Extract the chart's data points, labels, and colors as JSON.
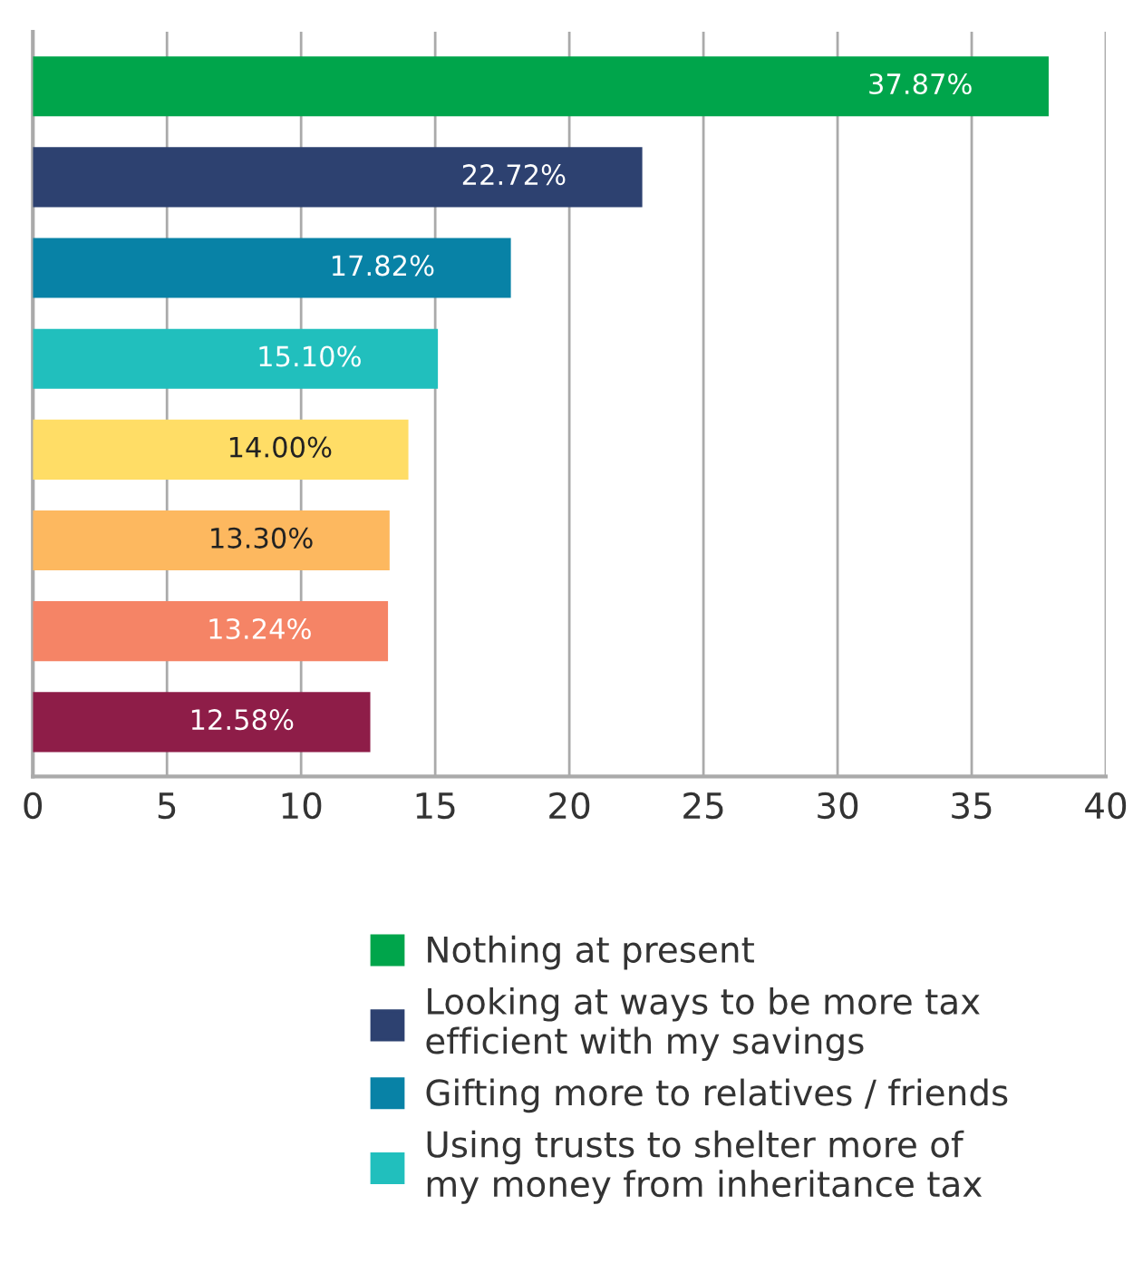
{
  "chart_data": {
    "type": "bar",
    "orientation": "horizontal",
    "categories": [
      null,
      null,
      null,
      null,
      null,
      null,
      null,
      null
    ],
    "series": [
      {
        "name": "Nothing at present",
        "color": "#00a54b",
        "values": [
          37.87,
          null,
          null,
          null,
          null,
          null,
          null,
          null
        ],
        "value_labels": [
          "37.87%",
          null,
          null,
          null,
          null,
          null,
          null,
          null
        ]
      },
      {
        "name": "Looking at ways to be more tax\nefficient with my savings",
        "color": "#2d4170",
        "values": [
          null,
          22.72,
          null,
          null,
          null,
          null,
          null,
          null
        ],
        "value_labels": [
          null,
          "22.72%",
          null,
          null,
          null,
          null,
          null,
          null
        ]
      },
      {
        "name": "Gifting more to relatives / friends",
        "color": "#0882a6",
        "values": [
          null,
          null,
          17.82,
          null,
          null,
          null,
          null,
          null
        ],
        "value_labels": [
          null,
          null,
          "17.82%",
          null,
          null,
          null,
          null,
          null
        ]
      },
      {
        "name": "Using trusts to shelter more of\nmy money from inheritance tax",
        "color": "#21bfbd",
        "values": [
          null,
          null,
          null,
          15.1,
          null,
          null,
          null,
          null
        ],
        "value_labels": [
          null,
          null,
          null,
          "15.10%",
          null,
          null,
          null,
          null
        ]
      },
      {
        "color": "#ffdd66",
        "values": [
          null,
          null,
          null,
          null,
          14.0,
          null,
          null,
          null
        ],
        "value_labels": [
          null,
          null,
          null,
          null,
          "14.00%",
          null,
          null,
          null
        ]
      },
      {
        "color": "#fdb85f",
        "values": [
          null,
          null,
          null,
          null,
          null,
          13.3,
          null,
          null
        ],
        "value_labels": [
          null,
          null,
          null,
          null,
          null,
          "13.30%",
          null,
          null
        ]
      },
      {
        "color": "#f58466",
        "values": [
          null,
          null,
          null,
          null,
          null,
          null,
          13.24,
          null
        ],
        "value_labels": [
          null,
          null,
          null,
          null,
          null,
          null,
          "13.24%",
          null
        ]
      },
      {
        "color": "#8e1d48",
        "values": [
          null,
          null,
          null,
          null,
          null,
          null,
          null,
          12.58
        ],
        "value_labels": [
          null,
          null,
          null,
          null,
          null,
          null,
          null,
          "12.58%"
        ]
      }
    ],
    "xlim": [
      0,
      40
    ],
    "xticks": [
      0,
      5,
      10,
      15,
      20,
      25,
      30,
      35,
      40
    ],
    "grid": "x",
    "legend": "bottom"
  }
}
